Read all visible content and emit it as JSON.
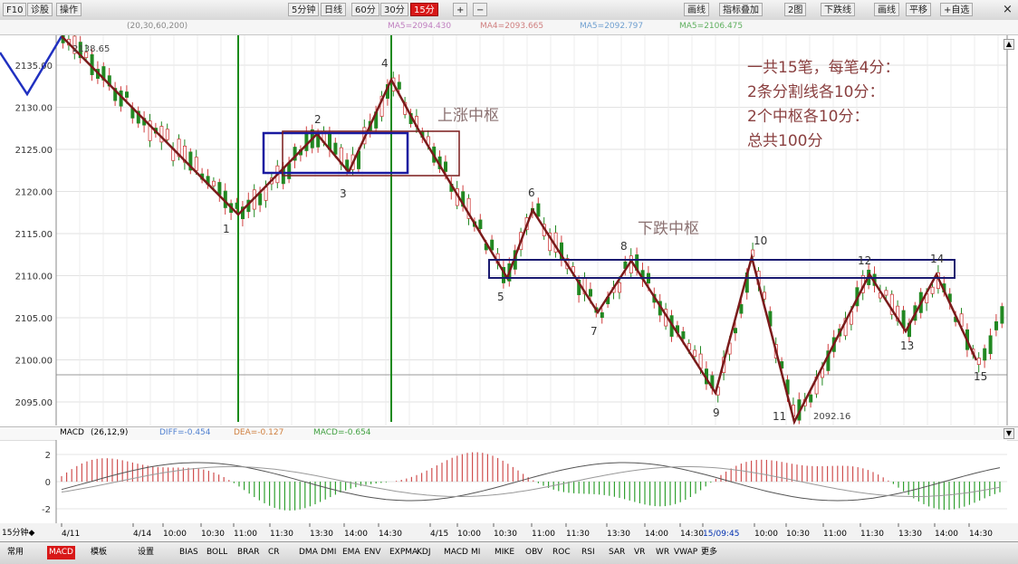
{
  "toolbar": {
    "left_items": [
      "F10",
      "诊股",
      "操作"
    ],
    "periods": [
      "5分钟",
      "日线",
      "60分",
      "30分",
      "15分"
    ],
    "active_period": "15分",
    "right_items": [
      "画线",
      "指标叠加",
      "2图",
      "下跌线",
      "画线",
      "平移",
      "+自选"
    ],
    "zoom_in": "+",
    "zoom_out": "−",
    "close": "×"
  },
  "ma_line": {
    "prefix": "(20,30,60,200)",
    "items": [
      "MA5=2094.430",
      "MA4=2093.665",
      "MA5=2092.797",
      "MA5=2106.475"
    ]
  },
  "price_axis": [
    "2135.00",
    "2130.00",
    "2125.00",
    "2120.00",
    "2115.00",
    "2110.00",
    "2105.00",
    "2100.00",
    "2095.00"
  ],
  "high_label": "2138.65",
  "low_label": "2092.16",
  "annotations": {
    "note_lines": [
      "一共15笔，每笔4分：",
      "2条分割线各10分：",
      "2个中枢各10分：",
      "总共100分"
    ],
    "up_center": "上涨中枢",
    "down_center": "下跌中枢"
  },
  "stroke_labels": [
    "1",
    "2",
    "3",
    "4",
    "5",
    "6",
    "7",
    "8",
    "9",
    "10",
    "11",
    "12",
    "13",
    "14",
    "15"
  ],
  "macd": {
    "title": "MACD",
    "params": "(26,12,9)",
    "diff": "DIFF=-0.454",
    "dea": "DEA=-0.127",
    "macd": "MACD=-0.654",
    "axis": [
      "2",
      "0",
      "-2"
    ]
  },
  "time_axis": [
    "4/11",
    "4/14",
    "10:00",
    "10:30",
    "11:00",
    "11:30",
    "13:30",
    "14:00",
    "14:30",
    "4/15",
    "10:00",
    "10:30",
    "11:00",
    "11:30",
    "13:30",
    "14:00",
    "14:30",
    "15/09:45",
    "10:00",
    "10:30",
    "11:00",
    "11:30",
    "13:30",
    "14:00",
    "14:30"
  ],
  "time_axis_left": "15分钟◆",
  "bottom_bar": {
    "items": [
      "常用",
      "MACD",
      "模板",
      "设置",
      "BIAS",
      "BOLL",
      "BRAR",
      "CR",
      "DMA",
      "DMI",
      "EMA",
      "ENV",
      "EXPMA",
      "KDJ",
      "MACD",
      "MI",
      "MIKE",
      "OBV",
      "ROC",
      "RSI",
      "SAR",
      "VR",
      "WR",
      "VWAP",
      "更多"
    ],
    "active": "MACD"
  },
  "colors": {
    "stroke": "#7a1a1a",
    "center_box": "#1a1aa0",
    "divider": "#1a8a1a",
    "candle_up": "#228822",
    "candle_down": "#d04040",
    "intro_line": "#2030c0"
  }
}
